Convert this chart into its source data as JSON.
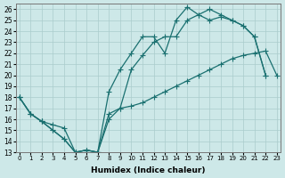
{
  "xlabel": "Humidex (Indice chaleur)",
  "xlim": [
    -0.3,
    23.3
  ],
  "ylim": [
    13,
    26.5
  ],
  "yticks": [
    13,
    14,
    15,
    16,
    17,
    18,
    19,
    20,
    21,
    22,
    23,
    24,
    25,
    26
  ],
  "xticks": [
    0,
    1,
    2,
    3,
    4,
    5,
    6,
    7,
    8,
    9,
    10,
    11,
    12,
    13,
    14,
    15,
    16,
    17,
    18,
    19,
    20,
    21,
    22,
    23
  ],
  "bg_color": "#cde8e8",
  "grid_color": "#aacccc",
  "line_color": "#1a7070",
  "line1_x": [
    0,
    1,
    2,
    3,
    4,
    5,
    6,
    7,
    8,
    9,
    10,
    11,
    12,
    13,
    14,
    15,
    16,
    17,
    18,
    19,
    20,
    21,
    22
  ],
  "line1_y": [
    18.0,
    16.5,
    15.8,
    15.0,
    14.2,
    13.0,
    13.2,
    13.0,
    18.5,
    20.5,
    22.0,
    23.5,
    23.5,
    22.0,
    25.0,
    26.2,
    25.5,
    26.0,
    25.5,
    25.0,
    24.5,
    23.5,
    20.0
  ],
  "line2_x": [
    0,
    1,
    2,
    3,
    4,
    5,
    6,
    7,
    8,
    9,
    10,
    11,
    12,
    13,
    14,
    15,
    16,
    17,
    18,
    19,
    20,
    21,
    22
  ],
  "line2_y": [
    18.0,
    16.5,
    15.8,
    15.0,
    14.2,
    13.0,
    13.2,
    13.0,
    16.5,
    17.0,
    20.5,
    21.8,
    23.0,
    23.5,
    23.5,
    25.0,
    25.5,
    25.0,
    25.3,
    25.0,
    24.5,
    23.5,
    20.0
  ],
  "line3_x": [
    0,
    1,
    2,
    3,
    4,
    5,
    6,
    7,
    8,
    9,
    10,
    11,
    12,
    13,
    14,
    15,
    16,
    17,
    18,
    19,
    20,
    21,
    22,
    23
  ],
  "line3_y": [
    18.0,
    16.5,
    15.8,
    15.5,
    15.2,
    13.0,
    13.2,
    13.0,
    16.0,
    17.0,
    17.2,
    17.5,
    18.0,
    18.5,
    19.0,
    19.5,
    20.0,
    20.5,
    21.0,
    21.5,
    21.8,
    22.0,
    22.2,
    20.0
  ],
  "markersize": 2.5,
  "linewidth": 0.9
}
